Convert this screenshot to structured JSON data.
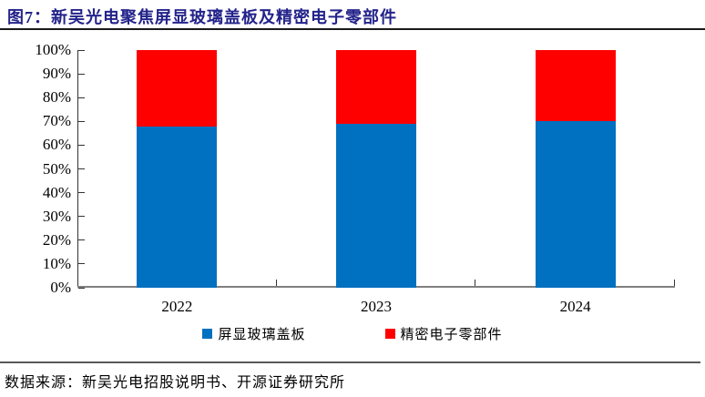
{
  "figure": {
    "title": "图7：新吴光电聚焦屏显玻璃盖板及精密电子零部件",
    "source": "数据来源：新吴光电招股说明书、开源证券研究所"
  },
  "colors": {
    "title_text": "#23238B",
    "title_rule": "#1A1A1A",
    "axis_line": "#7F7F7F",
    "tick": "#333333",
    "bottom_rule": "#595959",
    "bar_blue": "#0070C0",
    "bar_red": "#FF0000"
  },
  "chart_data": {
    "type": "bar",
    "stacked": true,
    "title": "新吴光电聚焦屏显玻璃盖板及精密电子零部件",
    "categories": [
      "2022",
      "2023",
      "2024"
    ],
    "series": [
      {
        "name": "屏显玻璃盖板",
        "color": "#0070C0",
        "values": [
          68,
          69,
          70
        ]
      },
      {
        "name": "精密电子零部件",
        "color": "#FF0000",
        "values": [
          32,
          31,
          30
        ]
      }
    ],
    "xlabel": "",
    "ylabel": "",
    "ylim": [
      0,
      100
    ],
    "ytick_step": 10,
    "ytick_suffix": "%",
    "grid": false,
    "legend_position": "bottom"
  }
}
